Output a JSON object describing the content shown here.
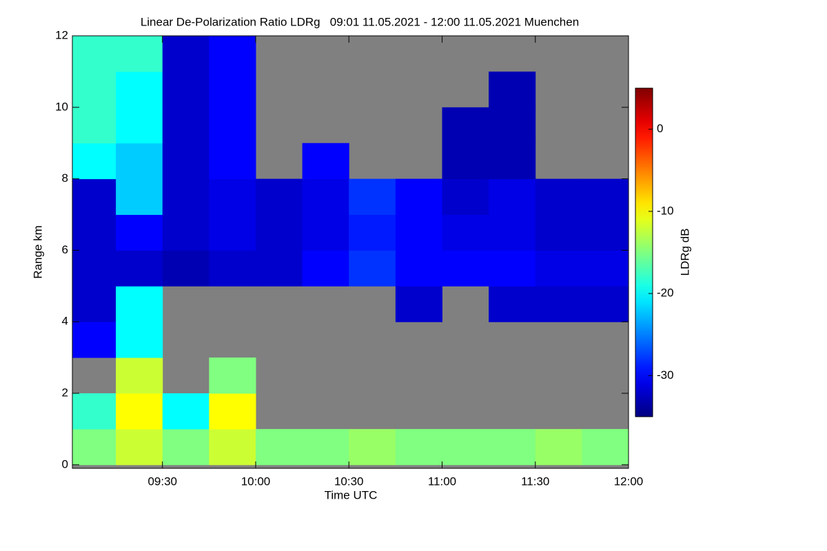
{
  "chart_data": {
    "type": "heatmap",
    "title": "Linear De-Polarization Ratio LDRg   09:01 11.05.2021 - 12:00 11.05.2021 Muenchen",
    "x_label": "Time UTC",
    "y_label": "Range km",
    "colorbar_label": "LDRg dB",
    "colormap": "jet",
    "missing_color": "#808080",
    "xlim": [
      9.0167,
      12
    ],
    "xticks": [
      {
        "value": 9.5,
        "label": "09:30"
      },
      {
        "value": 10,
        "label": "10:00"
      },
      {
        "value": 10.5,
        "label": "10:30"
      },
      {
        "value": 11,
        "label": "11:00"
      },
      {
        "value": 11.5,
        "label": "11:30"
      },
      {
        "value": 12,
        "label": "12:00"
      }
    ],
    "ylim": [
      -0.1,
      12
    ],
    "yticks": [
      0,
      2,
      4,
      6,
      8,
      10,
      12
    ],
    "zlim": [
      -35,
      5
    ],
    "zticks": [
      0,
      -10,
      -20,
      -30
    ],
    "xbins": [
      9.0167,
      9.25,
      9.5,
      9.75,
      10,
      10.25,
      10.5,
      10.75,
      11,
      11.25,
      11.5,
      11.75,
      12
    ],
    "ybins": [
      0,
      1,
      2,
      3,
      4,
      5,
      6,
      7,
      8,
      9,
      10,
      11,
      12
    ],
    "z": [
      [
        -15,
        -12,
        -15,
        -12,
        -15,
        -15,
        -14,
        -15,
        -15,
        -15,
        -14,
        -15
      ],
      [
        -18,
        -10,
        -20,
        -10,
        null,
        null,
        null,
        null,
        null,
        null,
        null,
        null
      ],
      [
        null,
        -12,
        null,
        -15,
        null,
        null,
        null,
        null,
        null,
        null,
        null,
        null
      ],
      [
        -30,
        -20,
        null,
        null,
        null,
        null,
        null,
        null,
        null,
        null,
        null,
        null
      ],
      [
        -32,
        -20,
        null,
        null,
        null,
        null,
        null,
        -32,
        null,
        -32,
        -32,
        -32
      ],
      [
        -32,
        -32,
        -33,
        -32,
        -32,
        -30,
        -28,
        -30,
        -30,
        -30,
        -31,
        -31
      ],
      [
        -32,
        -30,
        -32,
        -31,
        -32,
        -31,
        -29,
        -30,
        -31,
        -31,
        -32,
        -32
      ],
      [
        -32,
        -22,
        -32,
        -31,
        -32,
        -31,
        -28,
        -30,
        -32,
        -31,
        -32,
        -32
      ],
      [
        -20,
        -22,
        -32,
        -30,
        null,
        -30,
        null,
        null,
        -33,
        -33,
        null,
        null
      ],
      [
        -18,
        -20,
        -32,
        -30,
        null,
        null,
        null,
        null,
        -33,
        -33,
        null,
        null
      ],
      [
        -18,
        -20,
        -32,
        -30,
        null,
        null,
        null,
        null,
        null,
        -33,
        null,
        null
      ],
      [
        -18,
        -18,
        -32,
        -30,
        null,
        null,
        null,
        null,
        null,
        null,
        null,
        null
      ]
    ]
  }
}
